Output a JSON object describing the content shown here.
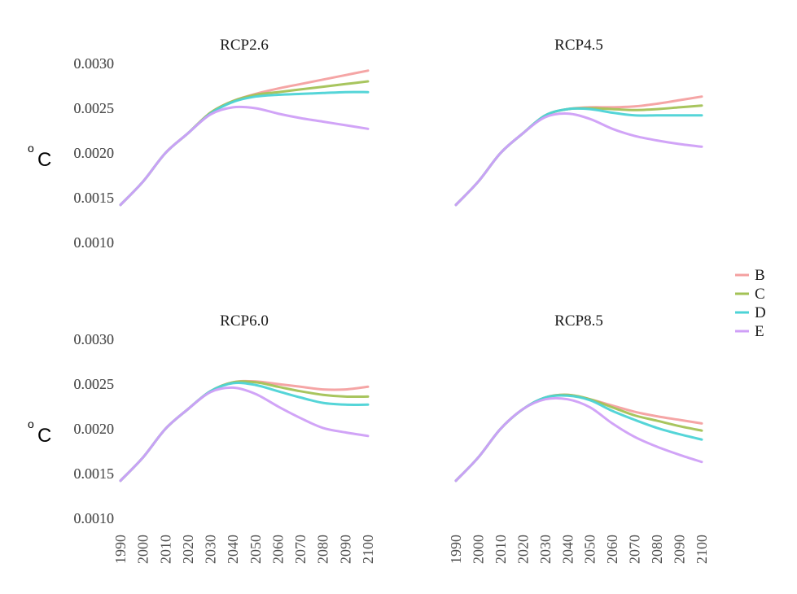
{
  "chart_data": {
    "type": "line",
    "y_unit_base": "C",
    "y_unit_sup": "o",
    "ylim": [
      0.001,
      0.003
    ],
    "yticks": [
      "0.0010",
      "0.0015",
      "0.0020",
      "0.0025",
      "0.0030"
    ],
    "x": [
      1990,
      2000,
      2010,
      2020,
      2030,
      2040,
      2050,
      2060,
      2070,
      2080,
      2090,
      2100
    ],
    "xticks": [
      "1990",
      "2000",
      "2010",
      "2020",
      "2030",
      "2040",
      "2050",
      "2060",
      "2070",
      "2080",
      "2090",
      "2100"
    ],
    "xlim": [
      1990,
      2100
    ],
    "legend": {
      "position": "right",
      "entries": [
        {
          "name": "B",
          "color": "#f4a0a0"
        },
        {
          "name": "C",
          "color": "#a3c255"
        },
        {
          "name": "D",
          "color": "#4cd3d6"
        },
        {
          "name": "E",
          "color": "#cf9ff7"
        }
      ]
    },
    "panels": [
      {
        "title": "RCP2.6",
        "series": [
          {
            "name": "B",
            "values": [
              0.00142,
              0.00168,
              0.002,
              0.00222,
              0.00245,
              0.00258,
              0.00266,
              0.00272,
              0.00277,
              0.00282,
              0.00287,
              0.00292
            ]
          },
          {
            "name": "C",
            "values": [
              0.00142,
              0.00168,
              0.002,
              0.00222,
              0.00245,
              0.00258,
              0.00265,
              0.00268,
              0.00271,
              0.00274,
              0.00277,
              0.0028
            ]
          },
          {
            "name": "D",
            "values": [
              0.00142,
              0.00168,
              0.002,
              0.00222,
              0.00244,
              0.00257,
              0.00263,
              0.00265,
              0.00266,
              0.00267,
              0.00268,
              0.00268
            ]
          },
          {
            "name": "E",
            "values": [
              0.00142,
              0.00168,
              0.002,
              0.00222,
              0.00243,
              0.00251,
              0.0025,
              0.00244,
              0.00239,
              0.00235,
              0.00231,
              0.00227
            ]
          }
        ]
      },
      {
        "title": "RCP4.5",
        "series": [
          {
            "name": "B",
            "values": [
              0.00142,
              0.00168,
              0.002,
              0.00222,
              0.00242,
              0.00249,
              0.00251,
              0.00251,
              0.00252,
              0.00255,
              0.00259,
              0.00263
            ]
          },
          {
            "name": "C",
            "values": [
              0.00142,
              0.00168,
              0.002,
              0.00222,
              0.00242,
              0.00249,
              0.0025,
              0.00249,
              0.00248,
              0.00249,
              0.00251,
              0.00253
            ]
          },
          {
            "name": "D",
            "values": [
              0.00142,
              0.00168,
              0.002,
              0.00222,
              0.00242,
              0.00249,
              0.00249,
              0.00245,
              0.00242,
              0.00242,
              0.00242,
              0.00242
            ]
          },
          {
            "name": "E",
            "values": [
              0.00142,
              0.00168,
              0.002,
              0.00222,
              0.0024,
              0.00244,
              0.00238,
              0.00227,
              0.00219,
              0.00214,
              0.0021,
              0.00207
            ]
          }
        ]
      },
      {
        "title": "RCP6.0",
        "series": [
          {
            "name": "B",
            "values": [
              0.00142,
              0.00168,
              0.002,
              0.00222,
              0.00242,
              0.00252,
              0.00253,
              0.0025,
              0.00247,
              0.00244,
              0.00244,
              0.00247
            ]
          },
          {
            "name": "C",
            "values": [
              0.00142,
              0.00168,
              0.002,
              0.00222,
              0.00242,
              0.00252,
              0.00252,
              0.00247,
              0.00242,
              0.00238,
              0.00236,
              0.00236
            ]
          },
          {
            "name": "D",
            "values": [
              0.00142,
              0.00168,
              0.002,
              0.00222,
              0.00242,
              0.00251,
              0.00249,
              0.00242,
              0.00235,
              0.00229,
              0.00227,
              0.00227
            ]
          },
          {
            "name": "E",
            "values": [
              0.00142,
              0.00168,
              0.002,
              0.00222,
              0.00241,
              0.00246,
              0.00239,
              0.00225,
              0.00212,
              0.00201,
              0.00196,
              0.00192
            ]
          }
        ]
      },
      {
        "title": "RCP8.5",
        "series": [
          {
            "name": "B",
            "values": [
              0.00142,
              0.00168,
              0.002,
              0.00222,
              0.00235,
              0.00238,
              0.00233,
              0.00226,
              0.00219,
              0.00214,
              0.0021,
              0.00206
            ]
          },
          {
            "name": "C",
            "values": [
              0.00142,
              0.00168,
              0.002,
              0.00222,
              0.00235,
              0.00238,
              0.00233,
              0.00224,
              0.00215,
              0.00209,
              0.00203,
              0.00198
            ]
          },
          {
            "name": "D",
            "values": [
              0.00142,
              0.00168,
              0.002,
              0.00222,
              0.00235,
              0.00237,
              0.00232,
              0.0022,
              0.0021,
              0.00201,
              0.00194,
              0.00188
            ]
          },
          {
            "name": "E",
            "values": [
              0.00142,
              0.00168,
              0.002,
              0.00222,
              0.00233,
              0.00233,
              0.00224,
              0.00206,
              0.00191,
              0.0018,
              0.00171,
              0.00163
            ]
          }
        ]
      }
    ]
  }
}
